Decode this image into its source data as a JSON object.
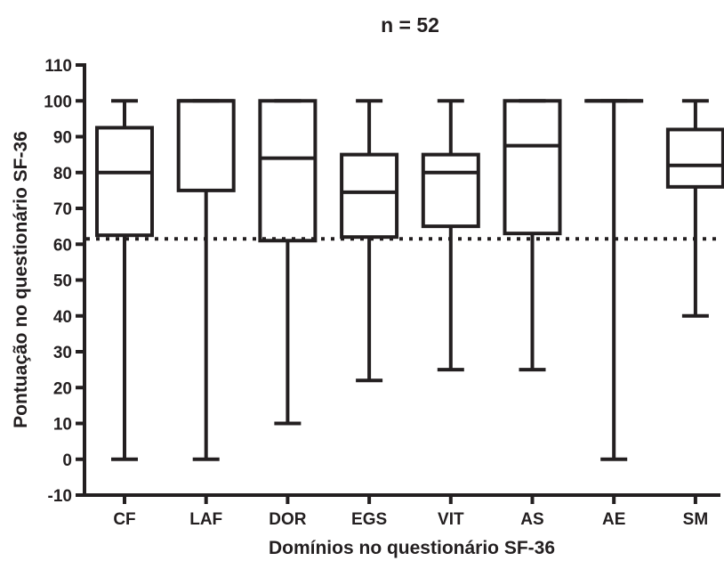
{
  "chart_data": {
    "type": "boxplot",
    "title": "n = 52",
    "xlabel": "Domínios no questionário SF-36",
    "ylabel": "Pontuação no questionário SF-36",
    "ylim": [
      -10,
      110
    ],
    "yticks": [
      -10,
      0,
      10,
      20,
      30,
      40,
      50,
      60,
      70,
      80,
      90,
      100,
      110
    ],
    "categories": [
      "CF",
      "LAF",
      "DOR",
      "EGS",
      "VIT",
      "AS",
      "AE",
      "SM"
    ],
    "boxes": [
      {
        "label": "CF",
        "min": 0,
        "q1": 62.5,
        "median": 80,
        "q3": 92.5,
        "max": 100
      },
      {
        "label": "LAF",
        "min": 0,
        "q1": 75,
        "median": 100,
        "q3": 100,
        "max": 100
      },
      {
        "label": "DOR",
        "min": 10,
        "q1": 61,
        "median": 84,
        "q3": 100,
        "max": 100
      },
      {
        "label": "EGS",
        "min": 22,
        "q1": 62,
        "median": 74.5,
        "q3": 85,
        "max": 100
      },
      {
        "label": "VIT",
        "min": 25,
        "q1": 65,
        "median": 80,
        "q3": 85,
        "max": 100
      },
      {
        "label": "AS",
        "min": 25,
        "q1": 63,
        "median": 87.5,
        "q3": 100,
        "max": 100
      },
      {
        "label": "AE",
        "min": 0,
        "q1": 100,
        "median": 100,
        "q3": 100,
        "max": 100
      },
      {
        "label": "SM",
        "min": 40,
        "q1": 76,
        "median": 82,
        "q3": 92,
        "max": 100
      }
    ],
    "reference_line": {
      "value": 61.5,
      "style": "dotted"
    },
    "grid": false,
    "legend": "none",
    "color": "#231f20"
  }
}
